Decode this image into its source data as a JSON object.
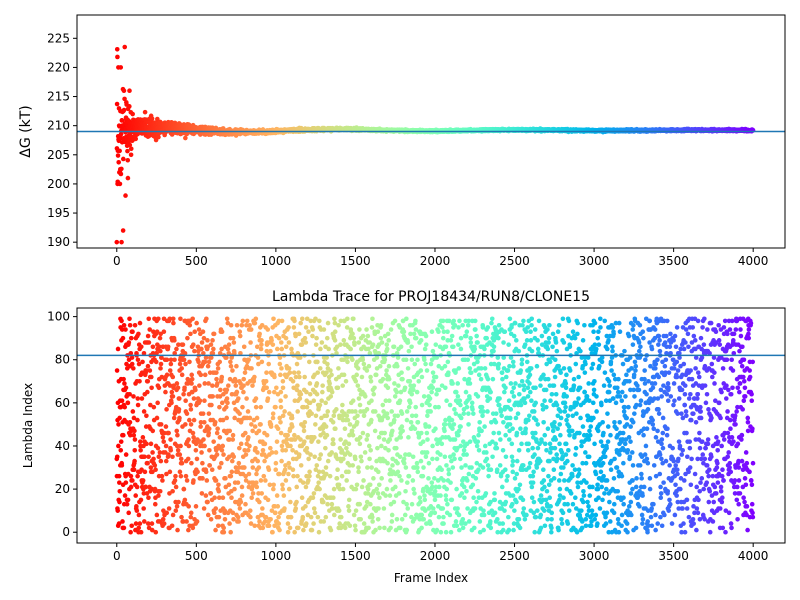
{
  "chart_data": [
    {
      "type": "scatter",
      "ylabel": "ΔG (kT)",
      "xlabel": "",
      "title": "",
      "xlim": [
        -250,
        4200
      ],
      "ylim": [
        189,
        229
      ],
      "xticks": [
        0,
        500,
        1000,
        1500,
        2000,
        2500,
        3000,
        3500,
        4000
      ],
      "yticks": [
        190,
        195,
        200,
        205,
        210,
        215,
        220,
        225
      ],
      "colormap": "rainbow",
      "reference_line": {
        "y": 209.0,
        "color": "#1f77b4"
      },
      "n_points": 4000,
      "series": [
        {
          "description_points": [
            {
              "x": 0,
              "y": 190.0
            },
            {
              "x": 5,
              "y": 200.0
            },
            {
              "x": 10,
              "y": 220.0
            },
            {
              "x": 15,
              "y": 210.0
            },
            {
              "x": 20,
              "y": 200.0
            },
            {
              "x": 25,
              "y": 220.0
            },
            {
              "x": 30,
              "y": 190.0
            },
            {
              "x": 35,
              "y": 210.0
            },
            {
              "x": 40,
              "y": 192.0
            },
            {
              "x": 45,
              "y": 216.0
            },
            {
              "x": 50,
              "y": 223.5
            },
            {
              "x": 55,
              "y": 198.0
            },
            {
              "x": 60,
              "y": 214.0
            },
            {
              "x": 70,
              "y": 201.0
            },
            {
              "x": 80,
              "y": 216.0
            },
            {
              "x": 90,
              "y": 205.0
            },
            {
              "x": 100,
              "y": 212.0
            }
          ],
          "settled_value": 209.2
        }
      ]
    },
    {
      "type": "scatter",
      "title": "Lambda Trace for PROJ18434/RUN8/CLONE15",
      "xlabel": "Frame Index",
      "ylabel": "Lambda Index",
      "xlim": [
        -250,
        4200
      ],
      "ylim": [
        -5,
        104
      ],
      "xticks": [
        0,
        500,
        1000,
        1500,
        2000,
        2500,
        3000,
        3500,
        4000
      ],
      "yticks": [
        0,
        20,
        40,
        60,
        80,
        100
      ],
      "colormap": "rainbow",
      "reference_line": {
        "y": 82,
        "color": "#1f77b4"
      },
      "n_points": 4000,
      "lambda_range": [
        0,
        99
      ]
    }
  ]
}
